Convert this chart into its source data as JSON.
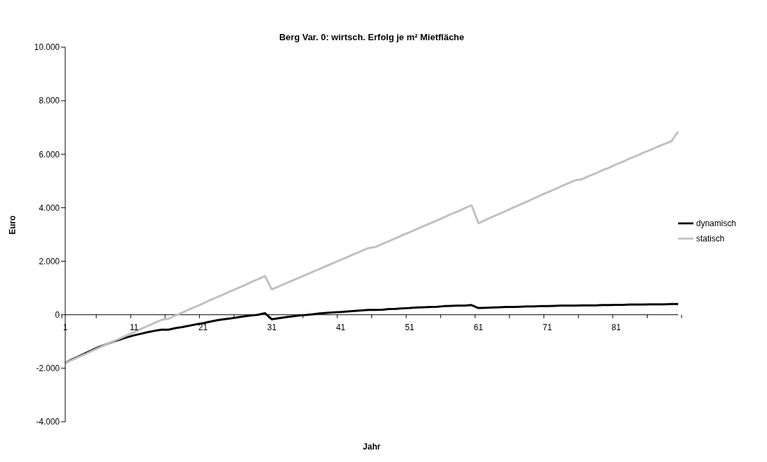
{
  "chart_data": {
    "type": "line",
    "title": "Berg Var. 0: wirtsch. Erfolg je m² Mietfläche",
    "xlabel": "Jahr",
    "ylabel": "Euro",
    "categories": [
      "1",
      null,
      null,
      null,
      null,
      null,
      null,
      null,
      null,
      null,
      "11",
      null,
      null,
      null,
      null,
      null,
      null,
      null,
      null,
      null,
      "21",
      null,
      null,
      null,
      null,
      null,
      null,
      null,
      null,
      null,
      "31",
      null,
      null,
      null,
      null,
      null,
      null,
      null,
      null,
      null,
      "41",
      null,
      null,
      null,
      null,
      null,
      null,
      null,
      null,
      null,
      "51",
      null,
      null,
      null,
      null,
      null,
      null,
      null,
      null,
      null,
      "61",
      null,
      null,
      null,
      null,
      null,
      null,
      null,
      null,
      null,
      "71",
      null,
      null,
      null,
      null,
      null,
      null,
      null,
      null,
      null,
      "81",
      null,
      null,
      null,
      null,
      null,
      null,
      null,
      null,
      null
    ],
    "series": [
      {
        "name": "dynamisch",
        "color": "#000000",
        "values": [
          -1800,
          -1670,
          -1550,
          -1430,
          -1310,
          -1200,
          -1100,
          -1000,
          -920,
          -840,
          -770,
          -710,
          -650,
          -600,
          -560,
          -560,
          -500,
          -460,
          -410,
          -360,
          -320,
          -260,
          -210,
          -170,
          -140,
          -100,
          -60,
          -30,
          0,
          60,
          -170,
          -130,
          -90,
          -60,
          -30,
          -10,
          20,
          50,
          70,
          90,
          100,
          120,
          140,
          160,
          180,
          180,
          190,
          210,
          220,
          240,
          250,
          270,
          280,
          290,
          300,
          320,
          330,
          340,
          340,
          360,
          250,
          260,
          270,
          280,
          290,
          290,
          300,
          310,
          310,
          320,
          320,
          330,
          340,
          340,
          340,
          350,
          350,
          350,
          360,
          360,
          370,
          370,
          380,
          380,
          380,
          390,
          390,
          390,
          400,
          400
        ]
      },
      {
        "name": "statisch",
        "color": "#c0c0c0",
        "values": [
          -1800,
          -1690,
          -1570,
          -1460,
          -1340,
          -1220,
          -1100,
          -990,
          -880,
          -760,
          -650,
          -530,
          -420,
          -300,
          -190,
          -150,
          -30,
          80,
          200,
          310,
          420,
          540,
          650,
          760,
          880,
          990,
          1100,
          1220,
          1330,
          1450,
          950,
          1060,
          1170,
          1280,
          1390,
          1500,
          1610,
          1720,
          1830,
          1940,
          2050,
          2160,
          2270,
          2380,
          2490,
          2530,
          2640,
          2750,
          2860,
          2980,
          3080,
          3200,
          3310,
          3420,
          3530,
          3640,
          3760,
          3860,
          3980,
          4090,
          3420,
          3540,
          3660,
          3770,
          3880,
          4000,
          4110,
          4220,
          4340,
          4460,
          4570,
          4680,
          4800,
          4910,
          5020,
          5060,
          5180,
          5280,
          5400,
          5500,
          5620,
          5720,
          5840,
          5940,
          6060,
          6160,
          6280,
          6380,
          6480,
          6850
        ]
      }
    ],
    "ylim": [
      -4000,
      10000
    ],
    "yticks": [
      {
        "value": -4000,
        "label": "-4.000"
      },
      {
        "value": -2000,
        "label": "-2.000"
      },
      0,
      {
        "value": 2000,
        "label": "2.000"
      },
      {
        "value": 4000,
        "label": "4.000"
      },
      {
        "value": 6000,
        "label": "6.000"
      },
      {
        "value": 8000,
        "label": "8.000"
      },
      {
        "value": 10000,
        "label": "10.000"
      }
    ],
    "grid": false,
    "legend": "right",
    "marker": "none",
    "line_style": "solid"
  }
}
